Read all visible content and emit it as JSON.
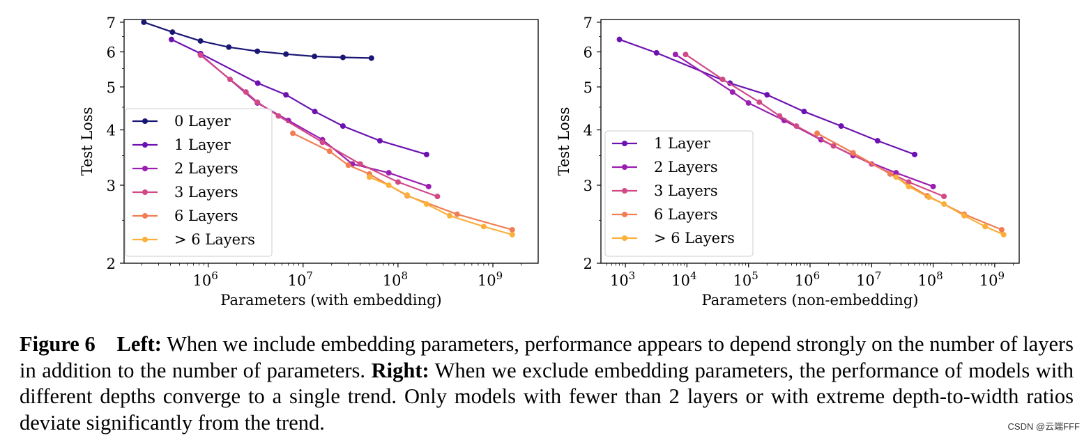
{
  "chart_data": [
    {
      "type": "line",
      "xscale": "log",
      "yscale": "log",
      "xlabel": "Parameters (with embedding)",
      "ylabel": "Test Loss",
      "xlim": [
        130000,
        3000000000
      ],
      "ylim": [
        2,
        7.1
      ],
      "yticks": [
        2,
        3,
        4,
        5,
        6,
        7
      ],
      "xticks": [
        {
          "value": 1000000,
          "exp": "6"
        },
        {
          "value": 10000000,
          "exp": "7"
        },
        {
          "value": 100000000,
          "exp": "8"
        },
        {
          "value": 1000000000,
          "exp": "9"
        }
      ],
      "legend": "center-left",
      "grid": false,
      "series": [
        {
          "name": "0 Layer",
          "color": "#1a1674",
          "x": [
            210000,
            420000,
            830000,
            1650000,
            3300000,
            6600000,
            13200000,
            26300000,
            52500000
          ],
          "y": [
            7.0,
            6.65,
            6.35,
            6.15,
            6.02,
            5.93,
            5.86,
            5.83,
            5.81
          ]
        },
        {
          "name": "1 Layer",
          "color": "#6b12b0",
          "x": [
            410000,
            830000,
            3330000,
            6600000,
            13300000,
            26300000,
            64500000,
            200000000
          ],
          "y": [
            6.4,
            5.95,
            5.1,
            4.8,
            4.4,
            4.08,
            3.78,
            3.52
          ]
        },
        {
          "name": "2 Layers",
          "color": "#9a1fb0",
          "x": [
            830000,
            3300000,
            7000000,
            16000000,
            33000000,
            80000000,
            210000000
          ],
          "y": [
            5.92,
            4.6,
            4.2,
            3.8,
            3.35,
            3.2,
            2.98
          ]
        },
        {
          "name": "3 Layers",
          "color": "#d14a86",
          "x": [
            830000,
            1700000,
            2500000,
            3300000,
            5500000,
            16000000,
            40000000,
            100000000,
            260000000
          ],
          "y": [
            5.9,
            5.2,
            4.87,
            4.62,
            4.3,
            3.75,
            3.35,
            3.05,
            2.83
          ]
        },
        {
          "name": "6 Layers",
          "color": "#f07e52",
          "x": [
            7800000,
            19000000,
            30000000,
            50000000,
            125000000,
            420000000,
            1600000000
          ],
          "y": [
            3.93,
            3.58,
            3.33,
            3.18,
            2.84,
            2.58,
            2.38
          ]
        },
        {
          "name": "> 6 Layers",
          "color": "#fab03b",
          "x": [
            50000000,
            80000000,
            125000000,
            200000000,
            350000000,
            800000000,
            1600000000
          ],
          "y": [
            3.13,
            3.0,
            2.85,
            2.72,
            2.56,
            2.42,
            2.32
          ]
        }
      ]
    },
    {
      "type": "line",
      "xscale": "log",
      "yscale": "log",
      "xlabel": "Parameters (non-embedding)",
      "ylabel": "Test Loss",
      "xlim": [
        400,
        2500000000
      ],
      "ylim": [
        2,
        7.1
      ],
      "yticks": [
        2,
        3,
        4,
        5,
        6,
        7
      ],
      "xticks": [
        {
          "value": 1000,
          "exp": "3"
        },
        {
          "value": 10000,
          "exp": "4"
        },
        {
          "value": 100000,
          "exp": "5"
        },
        {
          "value": 1000000,
          "exp": "6"
        },
        {
          "value": 10000000,
          "exp": "7"
        },
        {
          "value": 100000000,
          "exp": "8"
        },
        {
          "value": 1000000000,
          "exp": "9"
        }
      ],
      "legend": "lower-left",
      "grid": false,
      "series": [
        {
          "name": "1 Layer",
          "color": "#6b12b0",
          "x": [
            800,
            3200,
            50000,
            200000,
            800000,
            3200000,
            12500000,
            50000000
          ],
          "y": [
            6.4,
            5.97,
            5.1,
            4.8,
            4.4,
            4.08,
            3.78,
            3.52
          ]
        },
        {
          "name": "2 Layers",
          "color": "#9a1fb0",
          "x": [
            6500,
            55000,
            100000,
            380000,
            1500000,
            5000000,
            25000000,
            100000000
          ],
          "y": [
            5.92,
            4.87,
            4.6,
            4.2,
            3.8,
            3.5,
            3.2,
            2.98
          ]
        },
        {
          "name": "3 Layers",
          "color": "#d14a86",
          "x": [
            9500,
            38000,
            150000,
            320000,
            600000,
            2400000,
            10000000,
            40000000,
            150000000
          ],
          "y": [
            5.92,
            5.2,
            4.62,
            4.3,
            4.08,
            3.68,
            3.35,
            3.05,
            2.83
          ]
        },
        {
          "name": "6 Layers",
          "color": "#f07e52",
          "x": [
            1300000,
            5000000,
            20000000,
            80000000,
            320000000,
            1300000000
          ],
          "y": [
            3.93,
            3.55,
            3.18,
            2.84,
            2.58,
            2.38
          ]
        },
        {
          "name": "> 6 Layers",
          "color": "#fab03b",
          "x": [
            25000000,
            40000000,
            85000000,
            150000000,
            320000000,
            700000000,
            1400000000
          ],
          "y": [
            3.13,
            2.98,
            2.82,
            2.72,
            2.56,
            2.42,
            2.32
          ]
        }
      ]
    }
  ],
  "caption": {
    "figure_label": "Figure 6",
    "left_label": "Left:",
    "left_text": " When we include embedding parameters, performance appears to depend strongly on the number of layers in addition to the number of parameters.",
    "right_label": "Right:",
    "right_text": " When we exclude embedding parameters, the performance of models with different depths converge to a single trend. Only models with fewer than 2 layers or with extreme depth-to-width ratios deviate significantly from the trend."
  },
  "watermark": "CSDN @云端FFF"
}
